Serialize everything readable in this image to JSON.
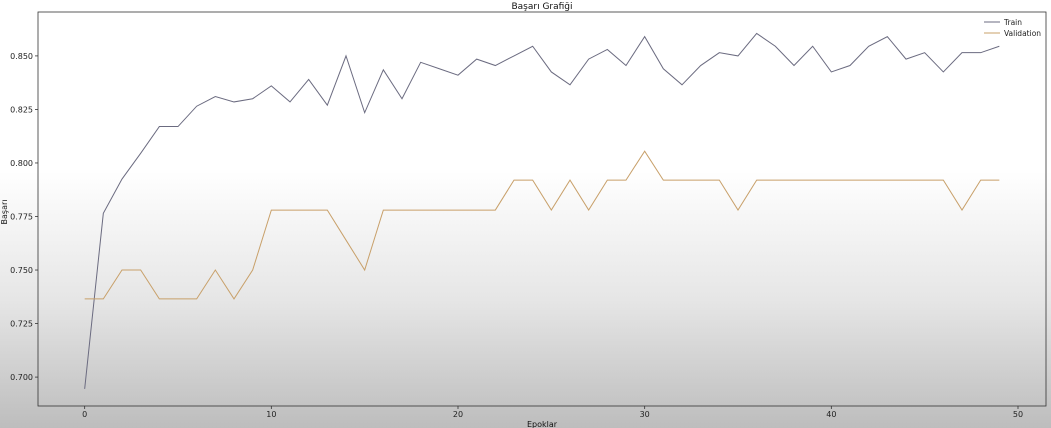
{
  "chart_data": {
    "type": "line",
    "title": "Başarı Grafiği",
    "xlabel": "Epoklar",
    "ylabel": "Başarı",
    "xlim": [
      -2.5,
      51.5
    ],
    "ylim": [
      0.6865,
      0.8705
    ],
    "xticks": [
      0,
      10,
      20,
      30,
      40,
      50
    ],
    "yticks": [
      0.7,
      0.725,
      0.75,
      0.775,
      0.8,
      0.825,
      0.85
    ],
    "ytick_labels": [
      "0.700",
      "0.725",
      "0.750",
      "0.775",
      "0.800",
      "0.825",
      "0.850"
    ],
    "legend_position": "top-right",
    "grid": false,
    "x": [
      0,
      1,
      2,
      3,
      4,
      5,
      6,
      7,
      8,
      9,
      10,
      11,
      12,
      13,
      14,
      15,
      16,
      17,
      18,
      19,
      20,
      21,
      22,
      23,
      24,
      25,
      26,
      27,
      28,
      29,
      30,
      31,
      32,
      33,
      34,
      35,
      36,
      37,
      38,
      39,
      40,
      41,
      42,
      43,
      44,
      45,
      46,
      47,
      48,
      49
    ],
    "series": [
      {
        "name": "Train",
        "color": "#6b6b80",
        "values": [
          0.6945,
          0.7765,
          0.7925,
          0.8045,
          0.817,
          0.817,
          0.8265,
          0.831,
          0.8285,
          0.83,
          0.836,
          0.8285,
          0.839,
          0.827,
          0.85,
          0.8235,
          0.8435,
          0.83,
          0.847,
          0.844,
          0.841,
          0.8485,
          0.8455,
          0.85,
          0.8545,
          0.8425,
          0.8365,
          0.8485,
          0.853,
          0.8455,
          0.859,
          0.844,
          0.8365,
          0.8455,
          0.8515,
          0.85,
          0.8605,
          0.8545,
          0.8455,
          0.8545,
          0.8425,
          0.8455,
          0.8545,
          0.859,
          0.8485,
          0.8515,
          0.8425,
          0.8515,
          0.8515,
          0.8545
        ]
      },
      {
        "name": "Validation",
        "color": "#c8a06a",
        "values": [
          0.7365,
          0.7365,
          0.75,
          0.75,
          0.7365,
          0.7365,
          0.7365,
          0.75,
          0.7365,
          0.75,
          0.778,
          0.778,
          0.778,
          0.778,
          0.764,
          0.75,
          0.778,
          0.778,
          0.778,
          0.778,
          0.778,
          0.778,
          0.778,
          0.792,
          0.792,
          0.778,
          0.792,
          0.778,
          0.792,
          0.792,
          0.8055,
          0.792,
          0.792,
          0.792,
          0.792,
          0.778,
          0.792,
          0.792,
          0.792,
          0.792,
          0.792,
          0.792,
          0.792,
          0.792,
          0.792,
          0.792,
          0.792,
          0.778,
          0.792,
          0.792
        ]
      }
    ]
  }
}
